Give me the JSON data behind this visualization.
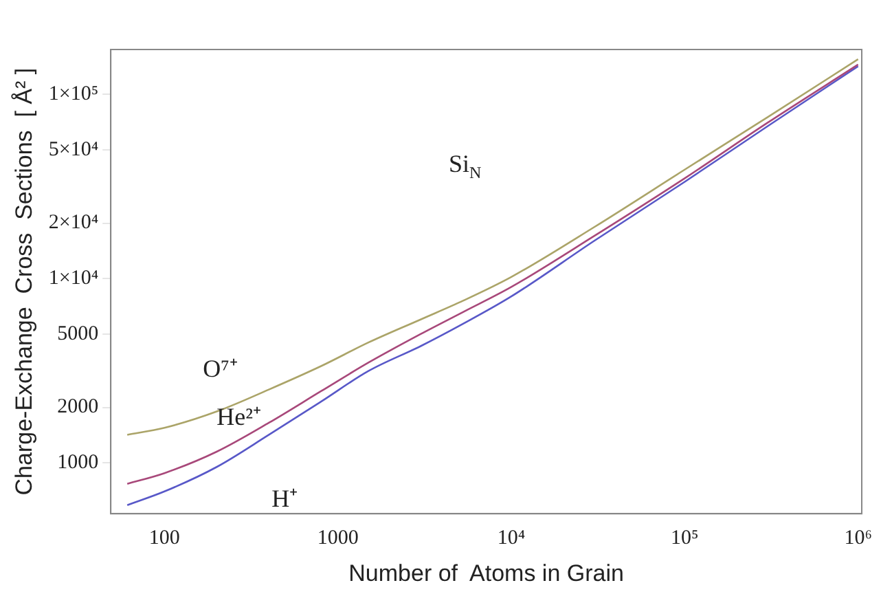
{
  "chart_data": {
    "type": "line",
    "xlabel": "Number of  Atoms in Grain",
    "ylabel": "Charge-Exchange  Cross  Sections  [ Å² ]",
    "log": "xy",
    "grid": false,
    "legend": false,
    "marker": "none",
    "line_style": "solid",
    "xlim": [
      49,
      1050000
    ],
    "ylim": [
      530,
      175000
    ],
    "xticks": [
      100,
      1000,
      {
        "value": 10000,
        "label": "10⁴"
      },
      {
        "value": 100000,
        "label": "10⁵"
      },
      {
        "value": 1000000,
        "label": "10⁶"
      }
    ],
    "yticks": [
      1000,
      2000,
      5000,
      {
        "value": 10000,
        "label": "1×10⁴"
      },
      {
        "value": 20000,
        "label": "2×10⁴"
      },
      {
        "value": 50000,
        "label": "5×10⁴"
      },
      {
        "value": 100000,
        "label": "1×10⁵"
      }
    ],
    "x": [
      61,
      100,
      200,
      400,
      800,
      1500,
      3000,
      5300,
      10000,
      30000,
      100000,
      300000,
      1000000
    ],
    "series": [
      {
        "name": "O⁷⁺",
        "color": "#aba468",
        "values": [
          1420,
          1550,
          1900,
          2500,
          3350,
          4500,
          6000,
          7600,
          10200,
          19000,
          39000,
          75000,
          155000
        ]
      },
      {
        "name": "He²⁺",
        "color": "#a8487a",
        "values": [
          770,
          880,
          1150,
          1650,
          2450,
          3500,
          5000,
          6600,
          9000,
          17000,
          35000,
          70000,
          145000
        ]
      },
      {
        "name": "H⁺",
        "color": "#5858c8",
        "values": [
          590,
          700,
          950,
          1420,
          2150,
          3150,
          4300,
          5700,
          8000,
          16000,
          33500,
          67000,
          142000
        ]
      }
    ],
    "annotations": [
      "Si$_{N}$"
    ]
  }
}
